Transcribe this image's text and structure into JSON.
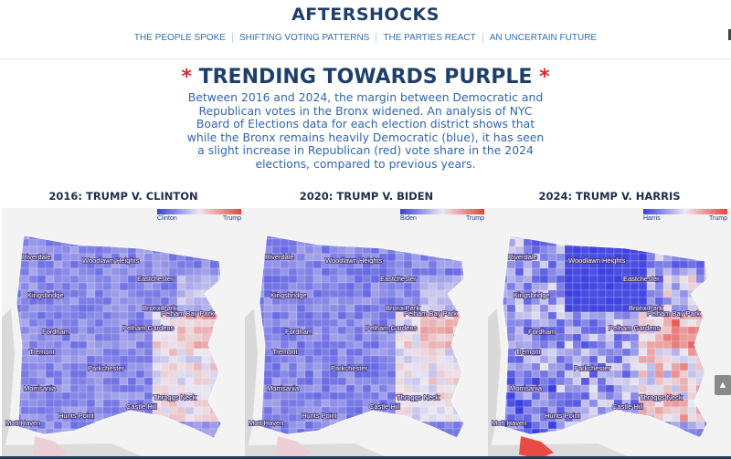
{
  "site": {
    "title": "AFTERSHOCKS",
    "nav": [
      "THE PEOPLE SPOKE",
      "SHIFTING VOTING PATTERNS",
      "THE PARTIES REACT",
      "AN UNCERTAIN FUTURE"
    ]
  },
  "article": {
    "star": "*",
    "headline": "TRENDING TOWARDS PURPLE",
    "intro": "Between 2016 and 2024, the margin between Democratic and Republican votes in the Bronx widened. An analysis of NYC Board of Elections data for each election district shows that while the Bronx remains heavily Democratic (blue), it has seen a slight increase in Republican (red) vote share in the 2024 elections, compared to previous years."
  },
  "maps": [
    {
      "title": "2016: TRUMP V. CLINTON",
      "legend_left": "Clinton",
      "legend_right": "Trump"
    },
    {
      "title": "2020: TRUMP V. BIDEN",
      "legend_left": "Biden",
      "legend_right": "Trump"
    },
    {
      "title": "2024: TRUMP V. HARRIS",
      "legend_left": "Harris",
      "legend_right": "Trump"
    }
  ],
  "places": {
    "riverdale": "Riverdale",
    "woodlawn": "Woodlawn Heights",
    "eastchester": "Eastchester",
    "kingsbridge": "Kingsbridge",
    "bronxpark": "Bronx Park",
    "fordham": "Fordham",
    "pelham_gardens": "Pelham Gardens",
    "pelham_bay": "Pelham Bay Park",
    "tremont": "Tremont",
    "parkchester": "Parkchester",
    "morrisania": "Morrisania",
    "throggs": "Throggs Neck",
    "castlehill": "Castle Hill",
    "mott": "Mott Haven",
    "hunts": "Hunts Point"
  },
  "colors": {
    "dem": "#3b3fe0",
    "rep": "#e8433a",
    "mid": "#ece8f0"
  },
  "ui": {
    "scroll_top_icon": "arrow-up-icon",
    "scroll_top_glyph": "▲"
  }
}
